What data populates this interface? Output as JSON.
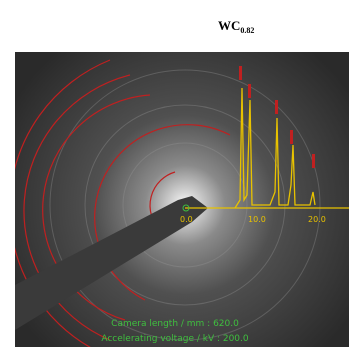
{
  "title": {
    "main": "WC",
    "sub": "0.82"
  },
  "axis_labels": [
    "0.0",
    "10.0",
    "20.0"
  ],
  "info": [
    "Camera length / mm : 620.0",
    "Accelerating voltage / kV : 200.0"
  ]
}
